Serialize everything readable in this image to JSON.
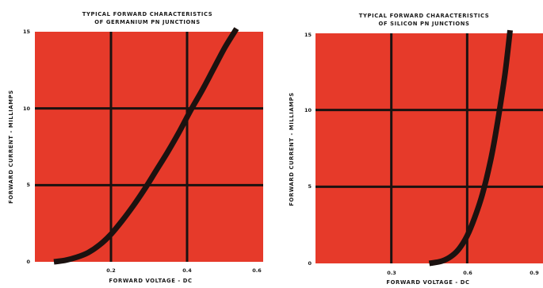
{
  "colors": {
    "plot_background": "#e63a2a",
    "grid": "#1b1210",
    "curve": "#1b1210",
    "text": "#1a1a1a",
    "page_background": "#ffffff"
  },
  "chart_data": [
    {
      "type": "line",
      "title": "TYPICAL FORWARD CHARACTERISTICS",
      "subtitle": "OF GERMANIUM PN JUNCTIONS",
      "xlabel": "FORWARD VOLTAGE  -  DC",
      "ylabel": "FORWARD CURRENT  -  MILLIAMPS",
      "xlim": [
        0,
        0.6
      ],
      "ylim": [
        0,
        15
      ],
      "x_ticks": [
        {
          "value": 0.2,
          "label": "0.2"
        },
        {
          "value": 0.4,
          "label": "0.4"
        },
        {
          "value": 0.6,
          "label": "0.6"
        }
      ],
      "y_ticks": [
        {
          "value": 0,
          "label": "0"
        },
        {
          "value": 5,
          "label": "5"
        },
        {
          "value": 10,
          "label": "10"
        },
        {
          "value": 15,
          "label": "15"
        }
      ],
      "grid": true,
      "series": [
        {
          "x": [
            0.05,
            0.08,
            0.11,
            0.14,
            0.17,
            0.2,
            0.23,
            0.26,
            0.29,
            0.32,
            0.35,
            0.38,
            0.41,
            0.44,
            0.47,
            0.5,
            0.53
          ],
          "y": [
            0.0,
            0.1,
            0.3,
            0.6,
            1.1,
            1.8,
            2.7,
            3.7,
            4.8,
            6.0,
            7.2,
            8.5,
            9.9,
            11.2,
            12.6,
            14.0,
            15.2
          ]
        }
      ]
    },
    {
      "type": "line",
      "title": "TYPICAL FORWARD CHARACTERISTICS",
      "subtitle": "OF SILICON PN JUNCTIONS",
      "xlabel": "FORWARD VOLTAGE  -  DC",
      "ylabel": "FORWARD CURRENT  -  MILLIAMPS",
      "xlim": [
        0,
        0.9
      ],
      "ylim": [
        0,
        15
      ],
      "x_ticks": [
        {
          "value": 0.3,
          "label": "0.3"
        },
        {
          "value": 0.6,
          "label": "0.6"
        },
        {
          "value": 0.9,
          "label": "0.9"
        }
      ],
      "y_ticks": [
        {
          "value": 0,
          "label": "0"
        },
        {
          "value": 5,
          "label": "5"
        },
        {
          "value": 10,
          "label": "10"
        },
        {
          "value": 15,
          "label": "15"
        }
      ],
      "grid": true,
      "series": [
        {
          "x": [
            0.45,
            0.5,
            0.54,
            0.57,
            0.6,
            0.63,
            0.66,
            0.69,
            0.71,
            0.73,
            0.75,
            0.77
          ],
          "y": [
            0.0,
            0.15,
            0.5,
            1.0,
            1.8,
            3.0,
            4.5,
            6.5,
            8.2,
            10.2,
            12.4,
            15.2
          ]
        }
      ]
    }
  ]
}
